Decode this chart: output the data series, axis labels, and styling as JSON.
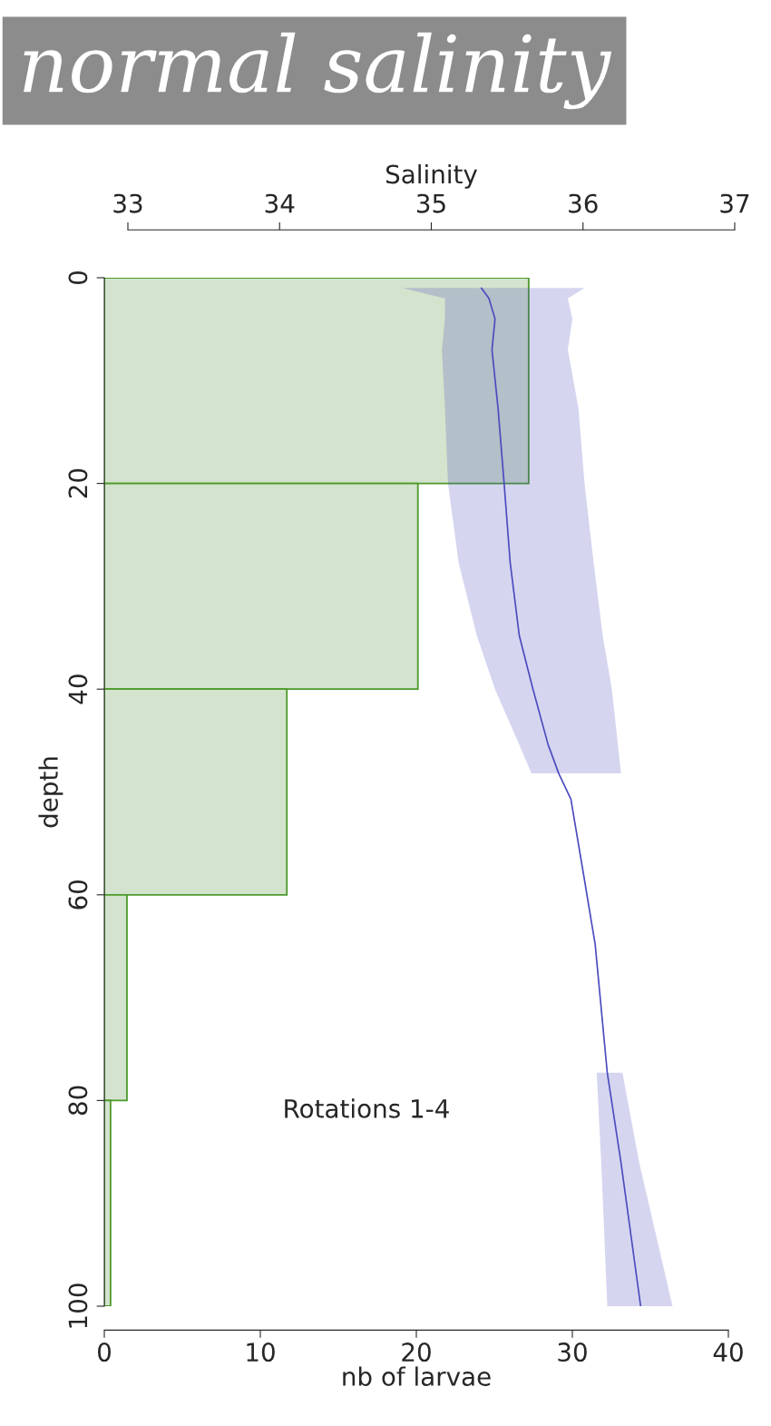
{
  "chart_data": {
    "type": "histogram",
    "orientation": "horizontal",
    "title": "normal salinity",
    "xlabel": "nb of larvae",
    "ylabel": "depth",
    "x2label": "Salinity",
    "annotations": [
      "Rotations 1-4"
    ],
    "bins": [
      0,
      20,
      40,
      60,
      80,
      100
    ],
    "series": [
      {
        "color": "#d3e3cd",
        "values": [
          27.2,
          20.1,
          11.7,
          1.45,
          0.4
        ]
      },
      {
        "type": "line",
        "axis": "x2",
        "color": "#4b4bbf",
        "x": [
          1,
          2,
          4,
          7,
          12.7,
          20,
          27.7,
          34.8,
          40,
          45.4,
          48.2,
          50.7,
          57.7,
          64.8,
          77.3,
          86,
          100
        ],
        "values": [
          35.33,
          35.38,
          35.42,
          35.4,
          35.44,
          35.48,
          35.52,
          35.58,
          35.67,
          35.77,
          35.84,
          35.92,
          36.0,
          36.08,
          36.16,
          36.25,
          36.38
        ],
        "lower": [
          34.81,
          35.09,
          35.09,
          35.07,
          35.09,
          35.11,
          35.18,
          35.3,
          35.42,
          35.58,
          35.66,
          null,
          null,
          null,
          36.09,
          36.12,
          36.16
        ],
        "upper": [
          36.01,
          35.9,
          35.93,
          35.9,
          35.97,
          36.01,
          36.07,
          36.13,
          36.19,
          36.23,
          36.25,
          null,
          null,
          null,
          36.26,
          36.37,
          36.59
        ]
      }
    ],
    "xlim": [
      0,
      40
    ],
    "xticks": [
      0,
      10,
      20,
      30,
      40
    ],
    "ylim": [
      100,
      0
    ],
    "yticks": [
      0,
      20,
      40,
      60,
      80,
      100
    ],
    "x2lim": [
      33,
      37
    ],
    "x2ticks": [
      33,
      34,
      35,
      36,
      37
    ],
    "grid": false,
    "legend": false
  }
}
